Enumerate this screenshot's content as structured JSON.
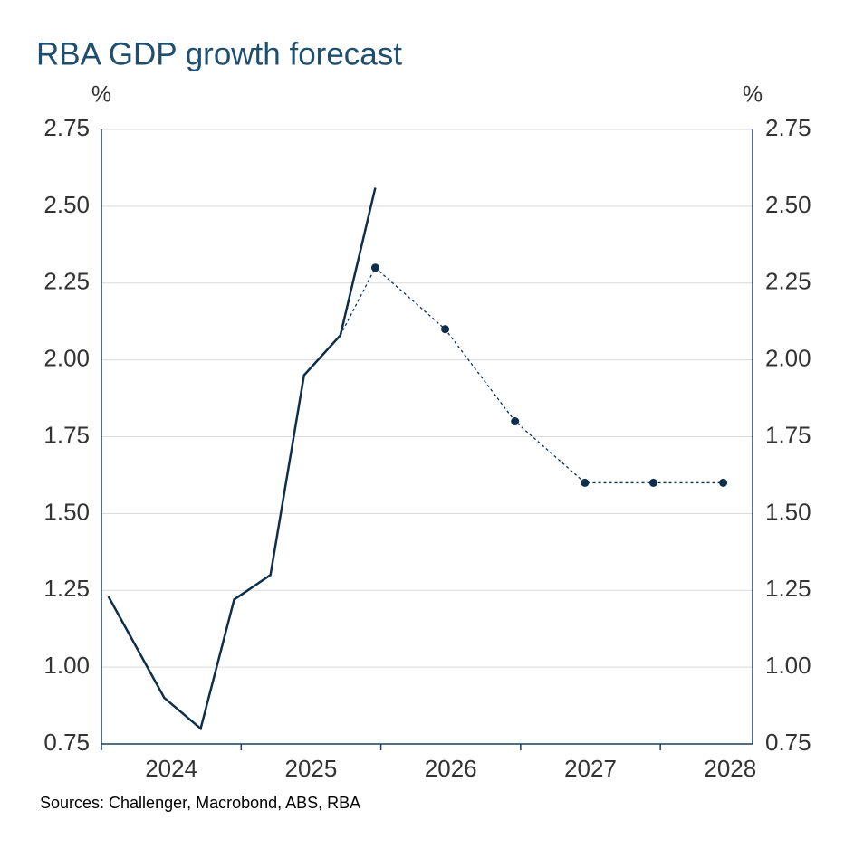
{
  "chart_data": {
    "type": "line",
    "title": "RBA GDP growth forecast",
    "y_label": "%",
    "y2_label": "%",
    "source": "Sources: Challenger, Macrobond, ABS, RBA",
    "xlim": [
      2024,
      2028.66
    ],
    "xticks": [
      2024,
      2025,
      2026,
      2027,
      2028
    ],
    "ylim": [
      0.75,
      2.75
    ],
    "yticks": [
      0.75,
      {
        "value": 1,
        "label": "1.00"
      },
      1.25,
      {
        "value": 1.5,
        "label": "1.50"
      },
      1.75,
      {
        "value": 2,
        "label": "2.00"
      },
      2.25,
      {
        "value": 2.5,
        "label": "2.50"
      },
      2.75
    ],
    "y2lim": [
      0.75,
      2.75
    ],
    "y2ticks": [
      0.75,
      {
        "value": 1,
        "label": "1.00"
      },
      1.25,
      {
        "value": 1.5,
        "label": "1.50"
      },
      1.75,
      {
        "value": 2,
        "label": "2.00"
      },
      2.25,
      {
        "value": 2.5,
        "label": "2.50"
      },
      2.75
    ],
    "grid": true,
    "series": [
      {
        "color": "#0e2f4b",
        "style": "solid",
        "markers": false,
        "x": [
          2024.05,
          2024.45,
          2024.71,
          2024.95,
          2025.21,
          2025.45,
          2025.71,
          2025.96
        ],
        "values": [
          1.23,
          0.9,
          0.8,
          1.22,
          1.3,
          1.95,
          2.08,
          2.56
        ]
      },
      {
        "color": "#0e2f4b",
        "style": "dashed",
        "markers": true,
        "x": [
          2025.96,
          2026.46,
          2026.96,
          2027.46,
          2027.95,
          2028.45
        ],
        "values": [
          2.3,
          2.1,
          1.8,
          1.6,
          1.6,
          1.6
        ]
      }
    ]
  }
}
